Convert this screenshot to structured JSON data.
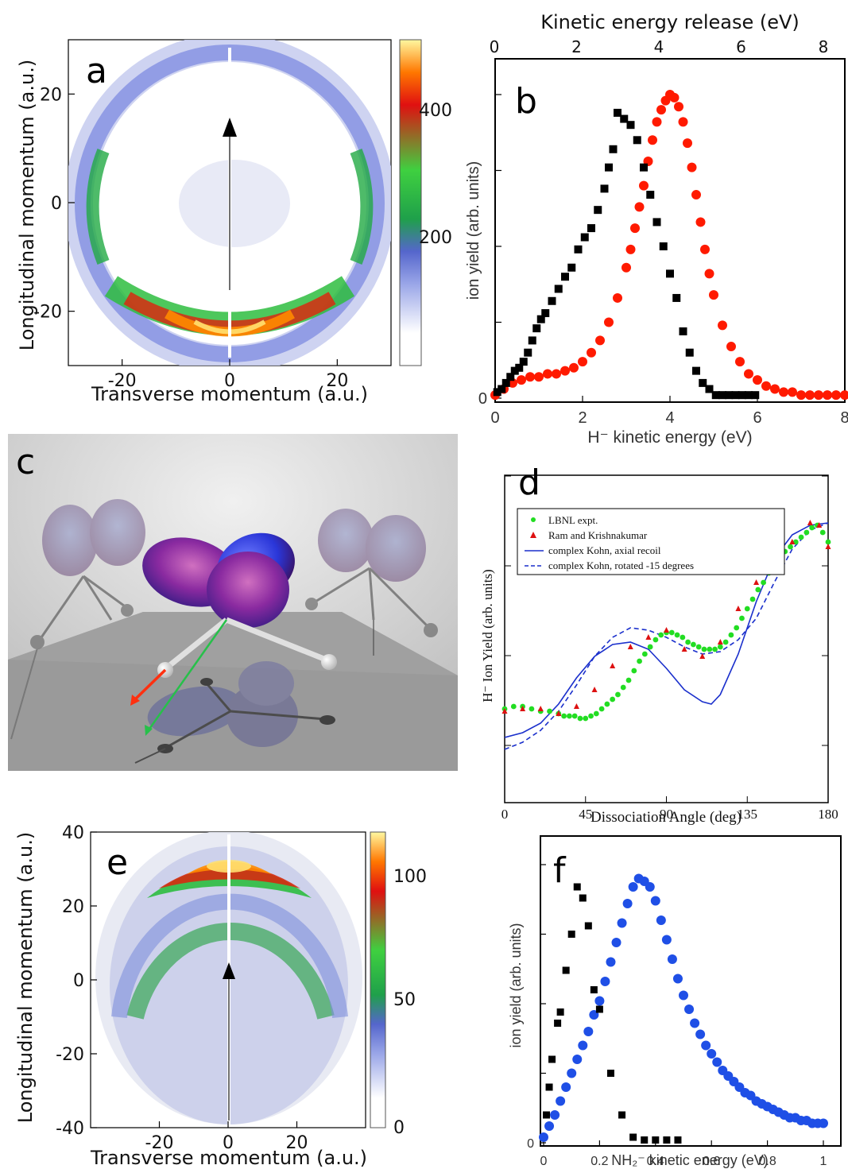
{
  "panels": {
    "a": {
      "letter": "a",
      "xlabel": "Transverse momentum (a.u.)",
      "ylabel": "Longitudinal momentum (a.u.)",
      "xticks": [
        "-20",
        "0",
        "20"
      ],
      "yticks": [
        "20",
        "0",
        "-20"
      ],
      "cbar_ticks": [
        "400",
        "200"
      ]
    },
    "b": {
      "letter": "b",
      "top_label": "Kinetic energy release (eV)",
      "top_ticks": [
        "0",
        "2",
        "4",
        "6",
        "8"
      ],
      "xlabel": "H⁻ kinetic energy (eV)",
      "ylabel": "ion yield (arb. units)",
      "xticks": [
        "0",
        "2",
        "4",
        "6",
        "8"
      ],
      "yticks": [
        "0"
      ]
    },
    "c": {
      "letter": "c"
    },
    "d": {
      "letter": "d",
      "xlabel": "Dissociation Angle (deg)",
      "ylabel": "H⁻ Ion Yield (arb. units)",
      "xticks": [
        "0",
        "45",
        "90",
        "135",
        "180"
      ],
      "legend": [
        "LBNL expt.",
        "Ram and Krishnakumar",
        "complex Kohn, axial recoil",
        "complex Kohn, rotated -15 degrees"
      ]
    },
    "e": {
      "letter": "e",
      "xlabel": "Transverse momentum (a.u.)",
      "ylabel": "Longitudinal momentum (a.u.)",
      "xticks": [
        "-20",
        "0",
        "20"
      ],
      "yticks": [
        "40",
        "20",
        "0",
        "-20",
        "-40"
      ],
      "cbar_ticks": [
        "100",
        "50",
        "0"
      ]
    },
    "f": {
      "letter": "f",
      "xlabel": "NH₂⁻ kinetic energy (eV)",
      "ylabel": "ion yield (arb. units)",
      "xticks": [
        "0",
        "0.2",
        "0.4",
        "0.6",
        "0.8",
        "1"
      ],
      "yticks": [
        "0"
      ]
    }
  },
  "colors": {
    "red_series": "#ff1a00",
    "black_series": "#000000",
    "blue_series": "#1f4fe6",
    "green_series": "#22dd22",
    "triangle_series": "#dd1111",
    "kohn_line": "#1a2fcc"
  },
  "chart_data": [
    {
      "type": "heatmap",
      "panel": "a",
      "xlim": [
        -30,
        30
      ],
      "ylim": [
        -30,
        30
      ],
      "cbar_range": [
        0,
        500
      ],
      "description_values": {
        "ring_radius": 23,
        "max_counts_region": "bottom"
      }
    },
    {
      "type": "scatter",
      "panel": "b",
      "xlim": [
        0,
        8
      ],
      "ylim": [
        0,
        1.0
      ],
      "series": [
        {
          "color": "red",
          "x": [
            0.0,
            0.2,
            0.4,
            0.6,
            0.8,
            1.0,
            1.2,
            1.4,
            1.6,
            1.8,
            2.0,
            2.2,
            2.4,
            2.6,
            2.8,
            3.0,
            3.1,
            3.2,
            3.3,
            3.4,
            3.5,
            3.6,
            3.7,
            3.8,
            3.9,
            4.0,
            4.1,
            4.2,
            4.3,
            4.4,
            4.5,
            4.6,
            4.7,
            4.8,
            4.9,
            5.0,
            5.2,
            5.4,
            5.6,
            5.8,
            6.0,
            6.2,
            6.4,
            6.6,
            6.8,
            7.0,
            7.2,
            7.4,
            7.6,
            7.8,
            8.0
          ],
          "y": [
            0.01,
            0.03,
            0.05,
            0.06,
            0.07,
            0.07,
            0.08,
            0.08,
            0.09,
            0.1,
            0.12,
            0.15,
            0.19,
            0.25,
            0.33,
            0.43,
            0.49,
            0.56,
            0.63,
            0.7,
            0.78,
            0.85,
            0.91,
            0.95,
            0.98,
            1.0,
            0.99,
            0.96,
            0.91,
            0.84,
            0.76,
            0.67,
            0.58,
            0.49,
            0.41,
            0.34,
            0.24,
            0.17,
            0.12,
            0.08,
            0.06,
            0.04,
            0.03,
            0.02,
            0.02,
            0.01,
            0.01,
            0.01,
            0.01,
            0.01,
            0.01
          ]
        },
        {
          "color": "black",
          "x": [
            0.05,
            0.15,
            0.25,
            0.35,
            0.45,
            0.55,
            0.65,
            0.75,
            0.85,
            0.95,
            1.05,
            1.15,
            1.3,
            1.45,
            1.6,
            1.75,
            1.9,
            2.05,
            2.2,
            2.35,
            2.5,
            2.6,
            2.7,
            2.8,
            2.95,
            3.1,
            3.25,
            3.4,
            3.55,
            3.7,
            3.85,
            4.0,
            4.15,
            4.3,
            4.45,
            4.6,
            4.75,
            4.9,
            5.05,
            5.2,
            5.35,
            5.5,
            5.65,
            5.8,
            5.95
          ],
          "y": [
            0.02,
            0.03,
            0.05,
            0.07,
            0.09,
            0.1,
            0.12,
            0.15,
            0.19,
            0.23,
            0.26,
            0.28,
            0.32,
            0.36,
            0.4,
            0.43,
            0.49,
            0.53,
            0.56,
            0.62,
            0.69,
            0.76,
            0.82,
            0.94,
            0.92,
            0.9,
            0.85,
            0.76,
            0.67,
            0.58,
            0.5,
            0.41,
            0.33,
            0.22,
            0.15,
            0.09,
            0.05,
            0.03,
            0.01,
            0.01,
            0.01,
            0.01,
            0.01,
            0.01,
            0.01
          ]
        }
      ]
    },
    {
      "type": "line",
      "panel": "d",
      "xlim": [
        0,
        180
      ],
      "ylim": [
        0,
        1
      ],
      "series": [
        {
          "name": "LBNL expt.",
          "style": "green-dots",
          "x": [
            0,
            5,
            10,
            15,
            20,
            25,
            30,
            33,
            36,
            39,
            42,
            45,
            48,
            51,
            54,
            57,
            60,
            63,
            66,
            69,
            72,
            75,
            78,
            81,
            84,
            87,
            90,
            93,
            96,
            99,
            102,
            105,
            108,
            111,
            114,
            117,
            120,
            123,
            126,
            129,
            132,
            135,
            138,
            141,
            144,
            147,
            150,
            153,
            156,
            159,
            162,
            165,
            168,
            171,
            174,
            177,
            180
          ],
          "y": [
            0.22,
            0.23,
            0.23,
            0.22,
            0.21,
            0.21,
            0.2,
            0.19,
            0.19,
            0.19,
            0.18,
            0.18,
            0.19,
            0.2,
            0.22,
            0.24,
            0.26,
            0.28,
            0.31,
            0.34,
            0.38,
            0.42,
            0.45,
            0.48,
            0.51,
            0.53,
            0.54,
            0.54,
            0.53,
            0.52,
            0.5,
            0.49,
            0.48,
            0.47,
            0.47,
            0.47,
            0.48,
            0.5,
            0.53,
            0.56,
            0.6,
            0.64,
            0.68,
            0.72,
            0.75,
            0.79,
            0.82,
            0.85,
            0.88,
            0.9,
            0.92,
            0.94,
            0.96,
            0.98,
            0.99,
            0.96,
            0.92
          ]
        },
        {
          "name": "Ram and Krishnakumar",
          "style": "red-triangles",
          "x": [
            0,
            10,
            20,
            30,
            40,
            50,
            60,
            70,
            80,
            90,
            100,
            110,
            120,
            130,
            140,
            150,
            160,
            170,
            175,
            180
          ],
          "y": [
            0.21,
            0.22,
            0.22,
            0.2,
            0.23,
            0.3,
            0.4,
            0.48,
            0.52,
            0.55,
            0.47,
            0.44,
            0.5,
            0.64,
            0.75,
            0.85,
            0.92,
            1.0,
            0.99,
            0.9
          ]
        },
        {
          "name": "complex Kohn, axial recoil",
          "style": "solid",
          "x": [
            0,
            10,
            20,
            30,
            40,
            50,
            60,
            70,
            80,
            90,
            100,
            110,
            115,
            120,
            130,
            140,
            150,
            160,
            170,
            180
          ],
          "y": [
            0.1,
            0.12,
            0.16,
            0.24,
            0.35,
            0.44,
            0.49,
            0.5,
            0.47,
            0.39,
            0.3,
            0.25,
            0.24,
            0.28,
            0.45,
            0.67,
            0.85,
            0.95,
            0.99,
            1.0
          ]
        },
        {
          "name": "complex Kohn, rotated -15 degrees",
          "style": "dashed",
          "x": [
            0,
            10,
            20,
            30,
            40,
            50,
            60,
            70,
            80,
            90,
            100,
            110,
            120,
            130,
            140,
            150,
            160,
            170,
            180
          ],
          "y": [
            0.05,
            0.08,
            0.13,
            0.21,
            0.32,
            0.44,
            0.52,
            0.56,
            0.55,
            0.52,
            0.48,
            0.45,
            0.46,
            0.51,
            0.6,
            0.75,
            0.89,
            0.97,
            1.0
          ]
        }
      ]
    },
    {
      "type": "heatmap",
      "panel": "e",
      "xlim": [
        -40,
        40
      ],
      "ylim": [
        -40,
        40
      ],
      "cbar_range": [
        0,
        120
      ],
      "description_values": {
        "arc_radius": 30,
        "max_counts_region": "top"
      }
    },
    {
      "type": "scatter",
      "panel": "f",
      "xlim": [
        0,
        1
      ],
      "ylim": [
        0,
        1.0
      ],
      "series": [
        {
          "color": "blue",
          "x": [
            0.0,
            0.02,
            0.04,
            0.06,
            0.08,
            0.1,
            0.12,
            0.14,
            0.16,
            0.18,
            0.2,
            0.22,
            0.24,
            0.26,
            0.28,
            0.3,
            0.32,
            0.34,
            0.36,
            0.38,
            0.4,
            0.42,
            0.44,
            0.46,
            0.48,
            0.5,
            0.52,
            0.54,
            0.56,
            0.58,
            0.6,
            0.62,
            0.64,
            0.66,
            0.68,
            0.7,
            0.72,
            0.74,
            0.76,
            0.78,
            0.8,
            0.82,
            0.84,
            0.86,
            0.88,
            0.9,
            0.92,
            0.94,
            0.96,
            0.98,
            1.0
          ],
          "y": [
            0.02,
            0.06,
            0.1,
            0.15,
            0.2,
            0.25,
            0.3,
            0.35,
            0.4,
            0.46,
            0.51,
            0.58,
            0.65,
            0.72,
            0.79,
            0.86,
            0.92,
            0.95,
            0.94,
            0.92,
            0.87,
            0.8,
            0.73,
            0.66,
            0.59,
            0.53,
            0.48,
            0.43,
            0.39,
            0.35,
            0.32,
            0.29,
            0.26,
            0.24,
            0.22,
            0.2,
            0.18,
            0.17,
            0.15,
            0.14,
            0.13,
            0.12,
            0.11,
            0.1,
            0.09,
            0.09,
            0.08,
            0.08,
            0.07,
            0.07,
            0.07
          ]
        },
        {
          "color": "black",
          "x": [
            0.01,
            0.02,
            0.03,
            0.05,
            0.06,
            0.08,
            0.1,
            0.12,
            0.14,
            0.16,
            0.18,
            0.2,
            0.24,
            0.28,
            0.32,
            0.36,
            0.4,
            0.44,
            0.48
          ],
          "y": [
            0.1,
            0.2,
            0.3,
            0.43,
            0.47,
            0.62,
            0.75,
            0.92,
            0.88,
            0.78,
            0.55,
            0.48,
            0.25,
            0.1,
            0.02,
            0.01,
            0.01,
            0.01,
            0.01
          ]
        }
      ]
    }
  ]
}
